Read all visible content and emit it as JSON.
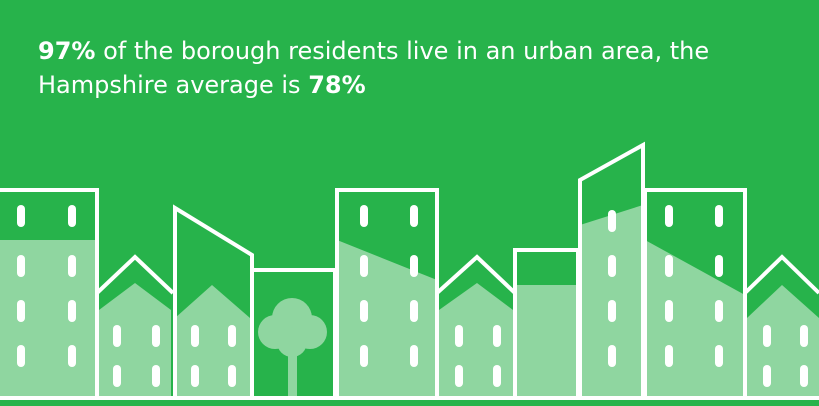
{
  "statement": {
    "line_1": {
      "stat": "97%",
      "text": "of the borough residents live in an urban area, the"
    },
    "line_2": {
      "text": "Hampshire average is",
      "stat": "78%"
    }
  }
}
